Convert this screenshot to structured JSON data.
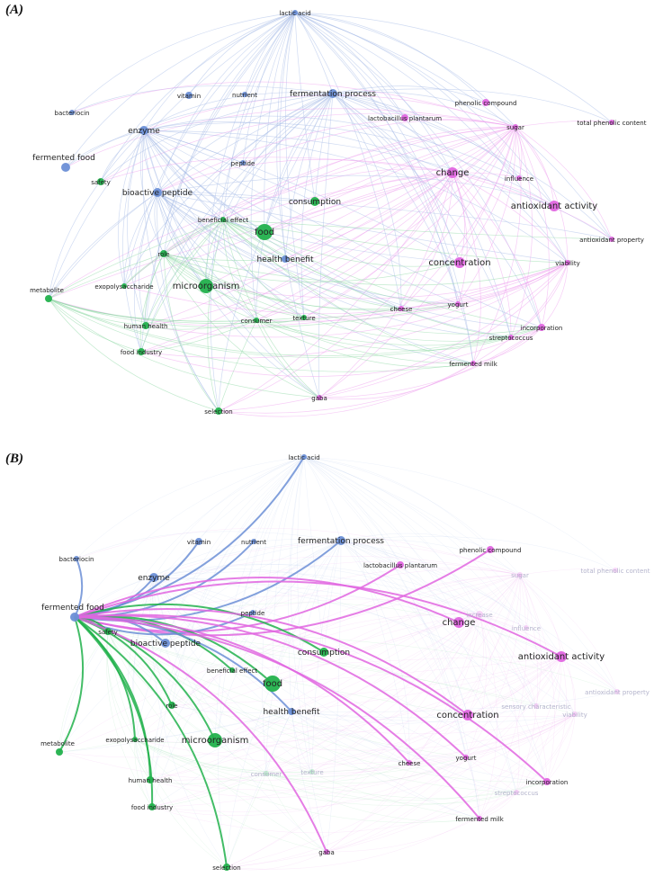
{
  "panels": [
    {
      "label": "(A)",
      "nodes": [
        {
          "id": "lactic-acid",
          "label": "lactic acid",
          "cluster": "blue"
        },
        {
          "id": "vitamin",
          "label": "vitamin",
          "cluster": "blue"
        },
        {
          "id": "nutrient",
          "label": "nutrient",
          "cluster": "blue"
        },
        {
          "id": "fermentation-process",
          "label": "fermentation process",
          "cluster": "blue"
        },
        {
          "id": "phenolic-compound",
          "label": "phenolic compound",
          "cluster": "magenta"
        },
        {
          "id": "lactobacillus-plantarum",
          "label": "lactobacillus plantarum",
          "cluster": "magenta"
        },
        {
          "id": "sugar",
          "label": "sugar",
          "cluster": "magenta"
        },
        {
          "id": "total-phenolic-content",
          "label": "total phenolic content",
          "cluster": "magenta"
        },
        {
          "id": "bacteriocin",
          "label": "bacteriocin",
          "cluster": "blue"
        },
        {
          "id": "enzyme",
          "label": "enzyme",
          "cluster": "blue"
        },
        {
          "id": "fermented-food",
          "label": "fermented food",
          "cluster": "blue"
        },
        {
          "id": "peptide",
          "label": "peptide",
          "cluster": "blue"
        },
        {
          "id": "change",
          "label": "change",
          "cluster": "magenta"
        },
        {
          "id": "influence",
          "label": "influence",
          "cluster": "magenta"
        },
        {
          "id": "safety",
          "label": "safety",
          "cluster": "green"
        },
        {
          "id": "bioactive-peptide",
          "label": "bioactive peptide",
          "cluster": "blue"
        },
        {
          "id": "consumption",
          "label": "consumption",
          "cluster": "green"
        },
        {
          "id": "antioxidant-activity",
          "label": "antioxidant activity",
          "cluster": "magenta"
        },
        {
          "id": "beneficial-effect",
          "label": "beneficial effect",
          "cluster": "green"
        },
        {
          "id": "food",
          "label": "food",
          "cluster": "green"
        },
        {
          "id": "antioxidant-property",
          "label": "antioxidant property",
          "cluster": "magenta"
        },
        {
          "id": "role",
          "label": "role",
          "cluster": "green"
        },
        {
          "id": "health-benefit",
          "label": "health benefit",
          "cluster": "blue"
        },
        {
          "id": "concentration",
          "label": "concentration",
          "cluster": "magenta"
        },
        {
          "id": "viability",
          "label": "viability",
          "cluster": "magenta"
        },
        {
          "id": "exopolysaccharide",
          "label": "exopolysaccharide",
          "cluster": "green"
        },
        {
          "id": "microorganism",
          "label": "microorganism",
          "cluster": "green"
        },
        {
          "id": "metabolite",
          "label": "metabolite",
          "cluster": "green"
        },
        {
          "id": "cheese",
          "label": "cheese",
          "cluster": "magenta"
        },
        {
          "id": "yogurt",
          "label": "yogurt",
          "cluster": "magenta"
        },
        {
          "id": "consumer",
          "label": "consumer",
          "cluster": "green"
        },
        {
          "id": "texture",
          "label": "texture",
          "cluster": "green"
        },
        {
          "id": "human-health",
          "label": "human health",
          "cluster": "green"
        },
        {
          "id": "incorporation",
          "label": "incorporation",
          "cluster": "magenta"
        },
        {
          "id": "food-industry",
          "label": "food industry",
          "cluster": "green"
        },
        {
          "id": "streptococcus",
          "label": "streptococcus",
          "cluster": "magenta"
        },
        {
          "id": "fermented-milk",
          "label": "fermented milk",
          "cluster": "magenta"
        },
        {
          "id": "gaba",
          "label": "gaba",
          "cluster": "magenta"
        },
        {
          "id": "selection",
          "label": "selection",
          "cluster": "green"
        }
      ]
    },
    {
      "label": "(B)",
      "focus": "fermented-food",
      "nodes": [
        {
          "id": "lactic-acid",
          "label": "lactic acid",
          "cluster": "blue",
          "linked": true
        },
        {
          "id": "vitamin",
          "label": "vitamin",
          "cluster": "blue",
          "linked": true
        },
        {
          "id": "nutrient",
          "label": "nutrient",
          "cluster": "blue",
          "linked": true
        },
        {
          "id": "fermentation-process",
          "label": "fermentation process",
          "cluster": "blue",
          "linked": true
        },
        {
          "id": "phenolic-compound",
          "label": "phenolic compound",
          "cluster": "magenta",
          "linked": true
        },
        {
          "id": "lactobacillus-plantarum",
          "label": "lactobacillus plantarum",
          "cluster": "magenta",
          "linked": true
        },
        {
          "id": "sugar",
          "label": "sugar",
          "cluster": "magenta",
          "linked": false
        },
        {
          "id": "total-phenolic-content",
          "label": "total phenolic content",
          "cluster": "magenta",
          "linked": false
        },
        {
          "id": "bacteriocin",
          "label": "bacteriocin",
          "cluster": "blue",
          "linked": true
        },
        {
          "id": "enzyme",
          "label": "enzyme",
          "cluster": "blue",
          "linked": true
        },
        {
          "id": "fermented-food",
          "label": "fermented food",
          "cluster": "blue",
          "linked": true
        },
        {
          "id": "peptide",
          "label": "peptide",
          "cluster": "blue",
          "linked": true
        },
        {
          "id": "increase",
          "label": "increase",
          "cluster": "magenta",
          "linked": false
        },
        {
          "id": "change",
          "label": "change",
          "cluster": "magenta",
          "linked": true
        },
        {
          "id": "influence",
          "label": "influence",
          "cluster": "magenta",
          "linked": false
        },
        {
          "id": "safety",
          "label": "safety",
          "cluster": "green",
          "linked": true
        },
        {
          "id": "bioactive-peptide",
          "label": "bioactive peptide",
          "cluster": "blue",
          "linked": true
        },
        {
          "id": "consumption",
          "label": "consumption",
          "cluster": "green",
          "linked": true
        },
        {
          "id": "antioxidant-activity",
          "label": "antioxidant activity",
          "cluster": "magenta",
          "linked": true
        },
        {
          "id": "beneficial-effect",
          "label": "beneficial effect",
          "cluster": "green",
          "linked": true
        },
        {
          "id": "food",
          "label": "food",
          "cluster": "green",
          "linked": true
        },
        {
          "id": "health-benefit",
          "label": "health benefit",
          "cluster": "blue",
          "linked": true
        },
        {
          "id": "antioxidant-property",
          "label": "antioxidant property",
          "cluster": "magenta",
          "linked": false
        },
        {
          "id": "sensory-characteristic",
          "label": "sensory characteristic",
          "cluster": "magenta",
          "linked": false
        },
        {
          "id": "viability",
          "label": "viability",
          "cluster": "magenta",
          "linked": false
        },
        {
          "id": "concentration",
          "label": "concentration",
          "cluster": "magenta",
          "linked": true
        },
        {
          "id": "role",
          "label": "role",
          "cluster": "green",
          "linked": true
        },
        {
          "id": "exopolysaccharide",
          "label": "exopolysaccharide",
          "cluster": "green",
          "linked": true
        },
        {
          "id": "microorganism",
          "label": "microorganism",
          "cluster": "green",
          "linked": true
        },
        {
          "id": "metabolite",
          "label": "metabolite",
          "cluster": "green",
          "linked": true
        },
        {
          "id": "consumer",
          "label": "consumer",
          "cluster": "green",
          "linked": false
        },
        {
          "id": "texture",
          "label": "texture",
          "cluster": "green",
          "linked": false
        },
        {
          "id": "cheese",
          "label": "cheese",
          "cluster": "magenta",
          "linked": true
        },
        {
          "id": "yogurt",
          "label": "yogurt",
          "cluster": "magenta",
          "linked": true
        },
        {
          "id": "human-health",
          "label": "human health",
          "cluster": "green",
          "linked": true
        },
        {
          "id": "incorporation",
          "label": "incorporation",
          "cluster": "magenta",
          "linked": true
        },
        {
          "id": "streptococcus",
          "label": "streptococcus",
          "cluster": "magenta",
          "linked": false
        },
        {
          "id": "food-industry",
          "label": "food industry",
          "cluster": "green",
          "linked": true
        },
        {
          "id": "fermented-milk",
          "label": "fermented milk",
          "cluster": "magenta",
          "linked": true
        },
        {
          "id": "gaba",
          "label": "gaba",
          "cluster": "magenta",
          "linked": true
        },
        {
          "id": "selection",
          "label": "selection",
          "cluster": "green",
          "linked": true
        }
      ]
    }
  ],
  "colors": {
    "blue": "#6c8fd6",
    "green": "#22b14c",
    "magenta": "#e066e0",
    "blue_light": "#a9bde8",
    "green_light": "#8fd9a6",
    "magenta_light": "#efa3ef",
    "faded_text": "#b4b4cc"
  }
}
